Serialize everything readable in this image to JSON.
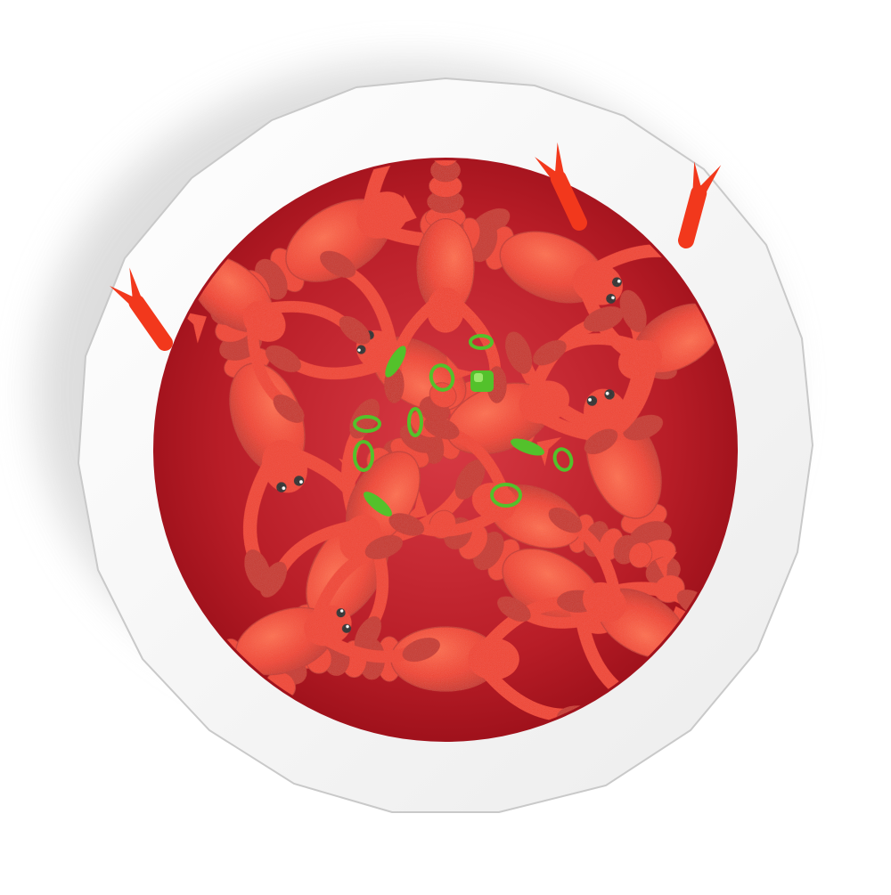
{
  "illustration": {
    "subject": "crayfish-dish",
    "colors": {
      "background": "#ffffff",
      "bowl_rim": "#f4f4f4",
      "bowl_rim_edge": "#c9c9c9",
      "shadow": "#dcdcdc",
      "sauce_dark": "#a3111c",
      "sauce_light": "#d3323a",
      "crayfish_body": "#f2381c",
      "crayfish_highlight": "#ff6a44",
      "crayfish_shade": "#c82512",
      "garnish_green": "#53c12b",
      "garnish_light": "#9be86b",
      "eye": "#111111"
    }
  }
}
